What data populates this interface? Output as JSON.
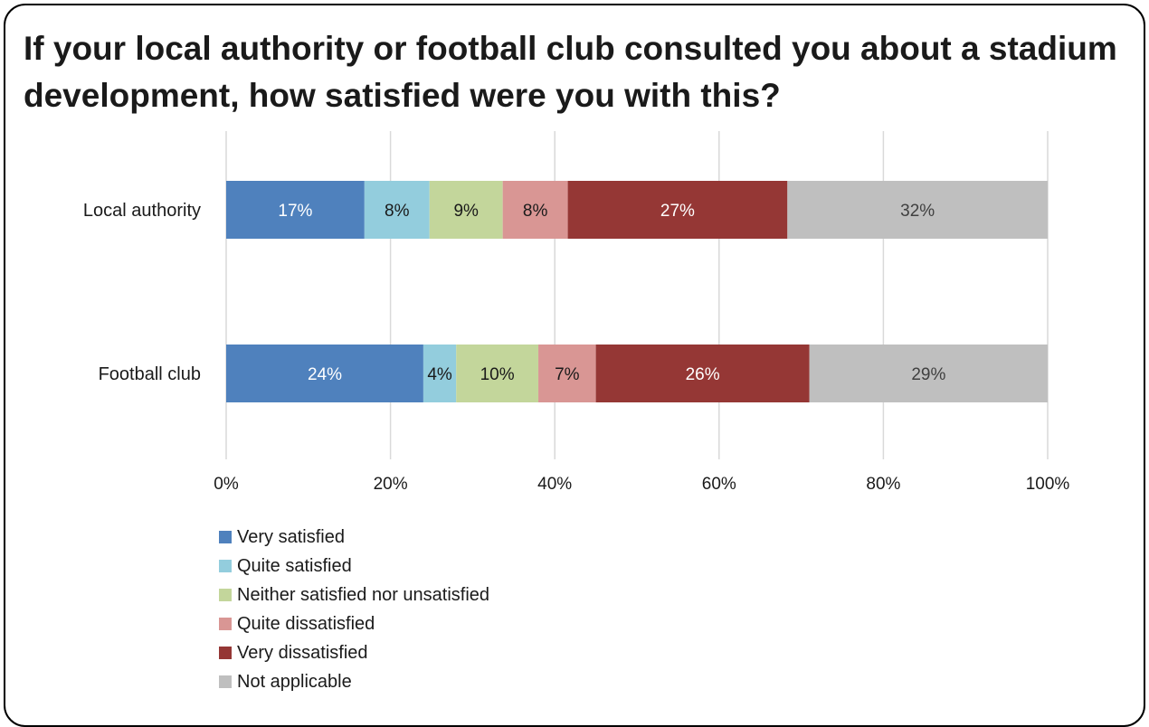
{
  "chart_data": {
    "type": "bar",
    "orientation": "horizontal",
    "stacked": true,
    "title": "If your local authority or football club consulted you about a stadium development, how satisfied were you with this?",
    "categories": [
      "Local authority",
      "Football club"
    ],
    "series": [
      {
        "name": "Very satisfied",
        "color": "#4f81bd",
        "label_color": "#ffffff",
        "values": [
          17,
          24
        ],
        "labels": [
          "17%",
          "24%"
        ]
      },
      {
        "name": "Quite satisfied",
        "color": "#93cddd",
        "label_color": "#1a1a1a",
        "values": [
          8,
          4
        ],
        "labels": [
          "8%",
          "4%"
        ]
      },
      {
        "name": "Neither satisfied nor unsatisfied",
        "color": "#c3d69b",
        "label_color": "#1a1a1a",
        "values": [
          9,
          10
        ],
        "labels": [
          "9%",
          "10%"
        ]
      },
      {
        "name": "Quite dissatisfied",
        "color": "#d99694",
        "label_color": "#1a1a1a",
        "values": [
          8,
          7
        ],
        "labels": [
          "8%",
          "7%"
        ]
      },
      {
        "name": "Very dissatisfied",
        "color": "#953735",
        "label_color": "#ffffff",
        "values": [
          27,
          26
        ],
        "labels": [
          "27%",
          "26%"
        ]
      },
      {
        "name": "Not applicable",
        "color": "#bfbfbf",
        "label_color": "#404040",
        "values": [
          32,
          29
        ],
        "labels": [
          "32%",
          "29%"
        ]
      }
    ],
    "xlim": [
      0,
      100
    ],
    "xticks": [
      0,
      20,
      40,
      60,
      80,
      100
    ],
    "xtick_labels": [
      "0%",
      "20%",
      "40%",
      "60%",
      "80%",
      "100%"
    ],
    "grid": true,
    "legend_position": "bottom-left"
  }
}
